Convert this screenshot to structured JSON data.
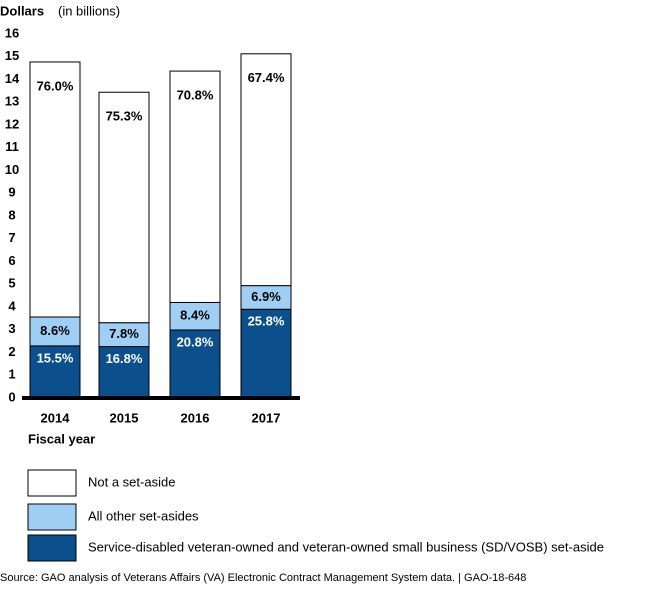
{
  "chart_data": {
    "type": "stacked_bar",
    "ylabel": "Dollars",
    "ylabel_note": "(in billions)",
    "xlabel": "Fiscal year",
    "categories": [
      "2014",
      "2015",
      "2016",
      "2017"
    ],
    "series": [
      {
        "name": "Service-disabled veteran-owned and veteran-owned small business (SD/VOSB) set-aside",
        "color": "#0b4f8c",
        "values": [
          2.29,
          2.26,
          2.99,
          3.9
        ],
        "percent_labels": [
          "15.5%",
          "16.8%",
          "20.8%",
          "25.8%"
        ]
      },
      {
        "name": "All other set-asides",
        "color": "#9fcff5",
        "values": [
          1.27,
          1.05,
          1.21,
          1.04
        ],
        "percent_labels": [
          "8.6%",
          "7.8%",
          "8.4%",
          "6.9%"
        ]
      },
      {
        "name": "Not a set-aside",
        "color": "#ffffff",
        "values": [
          11.21,
          10.13,
          10.17,
          10.19
        ],
        "percent_labels": [
          "76.0%",
          "75.3%",
          "70.8%",
          "67.4%"
        ]
      }
    ],
    "ylim": [
      0,
      16
    ],
    "yticks": [
      0,
      1,
      2,
      3,
      4,
      5,
      6,
      7,
      8,
      9,
      10,
      11,
      12,
      13,
      14,
      15,
      16
    ],
    "source": "Source: GAO analysis of Veterans Affairs (VA) Electronic Contract Management System data.  |  GAO-18-648"
  }
}
